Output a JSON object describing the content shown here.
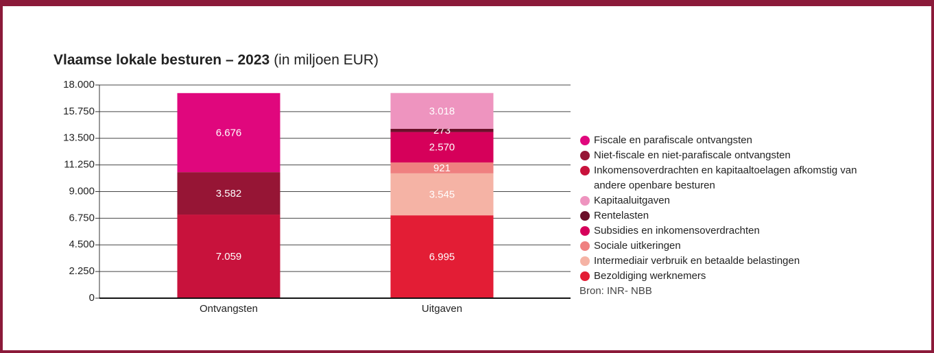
{
  "chart_data": {
    "type": "stacked_bar",
    "title": "Vlaamse lokale besturen – 2023",
    "subtitle": "(in miljoen EUR)",
    "source": "Bron: INR- NBB",
    "categories": [
      "Ontvangsten",
      "Uitgaven"
    ],
    "series": [
      {
        "name": "Fiscale en parafiscale ontvangsten",
        "color": "#e0077d",
        "values": [
          6676,
          null
        ],
        "value_labels": [
          "6.676",
          null
        ]
      },
      {
        "name": "Niet-fiscale en niet-parafiscale ontvangsten",
        "color": "#961535",
        "values": [
          3582,
          null
        ],
        "value_labels": [
          "3.582",
          null
        ]
      },
      {
        "name": "Inkomensoverdrachten en kapitaaltoelagen afkomstig van andere openbare besturen",
        "color": "#c8123c",
        "values": [
          7059,
          null
        ],
        "value_labels": [
          "7.059",
          null
        ]
      },
      {
        "name": "Kapitaaluitgaven",
        "color": "#ee94bf",
        "values": [
          null,
          3018
        ],
        "value_labels": [
          null,
          "3.018"
        ]
      },
      {
        "name": "Rentelasten",
        "color": "#6b0f2a",
        "values": [
          null,
          273
        ],
        "value_labels": [
          null,
          "273"
        ]
      },
      {
        "name": "Subsidies en inkomensoverdrachten",
        "color": "#d6005a",
        "values": [
          null,
          2570
        ],
        "value_labels": [
          null,
          "2.570"
        ]
      },
      {
        "name": "Sociale uitkeringen",
        "color": "#ef8080",
        "values": [
          null,
          921
        ],
        "value_labels": [
          null,
          "921"
        ]
      },
      {
        "name": "Intermediair verbruik en betaalde belastingen",
        "color": "#f5b3a5",
        "values": [
          null,
          3545
        ],
        "value_labels": [
          null,
          "3.545"
        ]
      },
      {
        "name": "Bezoldiging werknemers",
        "color": "#e31d35",
        "values": [
          null,
          6995
        ],
        "value_labels": [
          null,
          "6.995"
        ]
      }
    ],
    "ylim": [
      0,
      18000
    ],
    "yticks": [
      0,
      {
        "value": 2250,
        "label": "2.250"
      },
      {
        "value": 4500,
        "label": "4.500"
      },
      {
        "value": 6750,
        "label": "6.750"
      },
      {
        "value": 9000,
        "label": "9.000"
      },
      {
        "value": 11250,
        "label": "11.250"
      },
      {
        "value": 13500,
        "label": "13.500"
      },
      {
        "value": 15750,
        "label": "15.750"
      },
      {
        "value": 18000,
        "label": "18.000"
      }
    ],
    "grid": true
  }
}
